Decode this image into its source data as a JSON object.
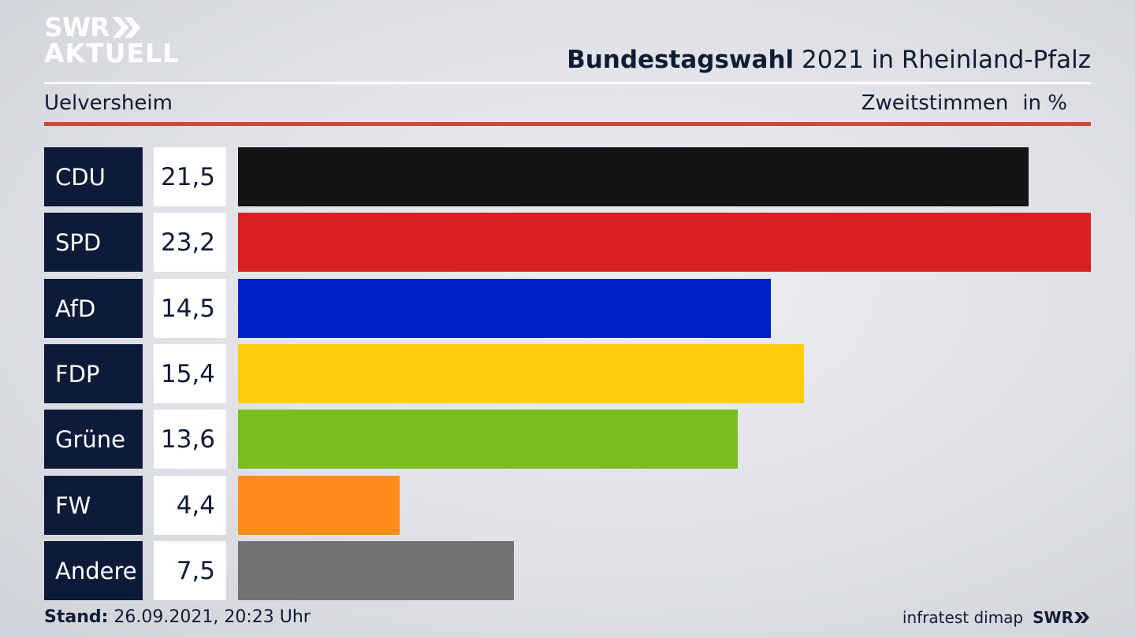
{
  "branding": {
    "logo_line1": "SWR",
    "logo_line2": "AKTUELL",
    "footer_logo": "SWR"
  },
  "header": {
    "title_bold": "Bundestagswahl",
    "title_rest": " 2021 in Rheinland-Pfalz",
    "subtitle": "Uelversheim",
    "metric": "Zweitstimmen",
    "unit": "in %"
  },
  "footer": {
    "stand_label": "Stand:",
    "stand_value": " 26.09.2021, 20:23 Uhr",
    "source": "infratest dimap"
  },
  "chart_data": {
    "type": "bar",
    "orientation": "horizontal",
    "categories": [
      "CDU",
      "SPD",
      "AfD",
      "FDP",
      "Grüne",
      "FW",
      "Andere"
    ],
    "values": [
      21.5,
      23.2,
      14.5,
      15.4,
      13.6,
      4.4,
      7.5
    ],
    "value_labels": [
      "21,5",
      "23,2",
      "14,5",
      "15,4",
      "13,6",
      "4,4",
      "7,5"
    ],
    "colors": [
      "#141414",
      "#d92020",
      "#0022c8",
      "#ffcc0a",
      "#78be1e",
      "#ff8c1a",
      "#727274"
    ],
    "xlim": [
      0,
      23.2
    ],
    "grid": false,
    "legend": "none"
  }
}
